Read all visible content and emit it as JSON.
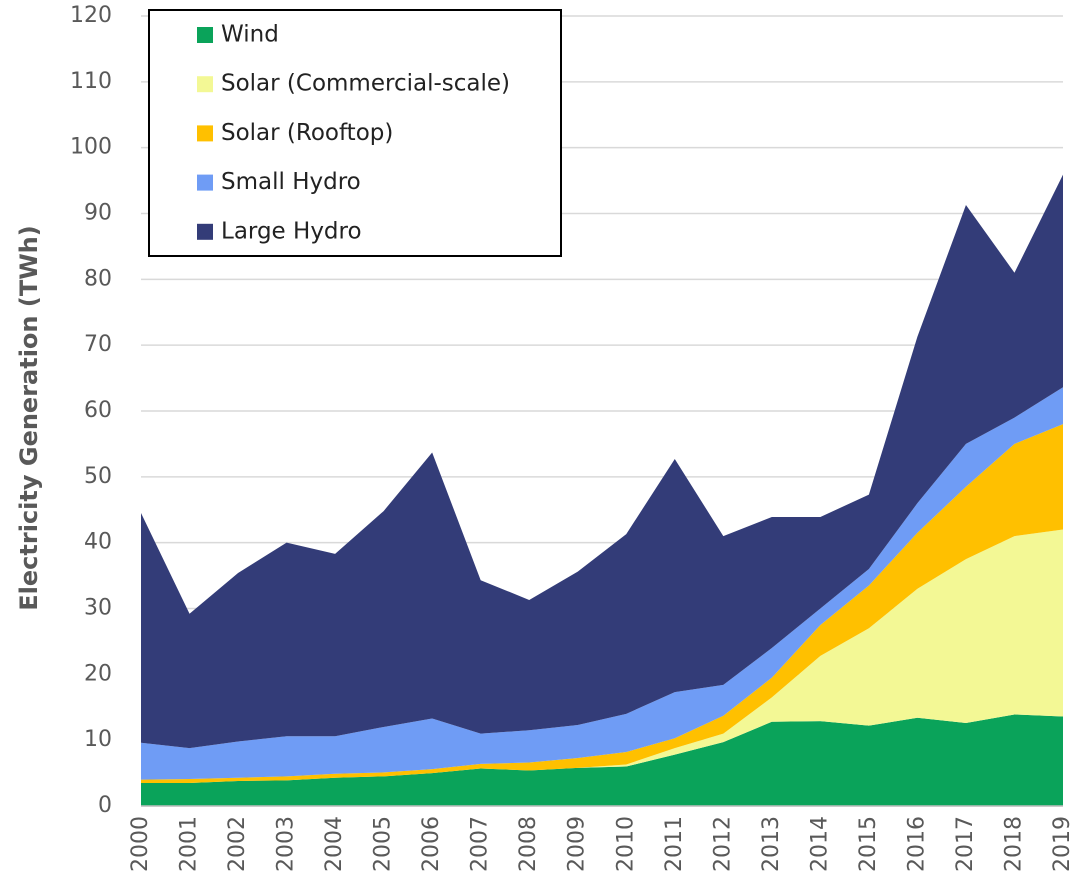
{
  "chart_data": {
    "type": "stacked_area",
    "y_label": "Electricity Generation (TWh)",
    "categories": [
      "2000",
      "2001",
      "2002",
      "2003",
      "2004",
      "2005",
      "2006",
      "2007",
      "2008",
      "2009",
      "2010",
      "2011",
      "2012",
      "2013",
      "2014",
      "2015",
      "2016",
      "2017",
      "2018",
      "2019"
    ],
    "series": [
      {
        "name": "Wind",
        "color": "#0aa35a",
        "values": [
          3.5,
          3.5,
          3.8,
          3.9,
          4.3,
          4.5,
          5.0,
          5.7,
          5.4,
          5.8,
          6.0,
          7.8,
          9.7,
          12.8,
          12.9,
          12.2,
          13.4,
          12.6,
          13.9,
          13.6
        ]
      },
      {
        "name": "Solar (Commercial-scale)",
        "color": "#f3f895",
        "values": [
          0,
          0,
          0,
          0,
          0,
          0,
          0,
          0,
          0,
          0,
          0.3,
          1.0,
          1.3,
          3.7,
          9.9,
          14.8,
          19.6,
          24.9,
          27.1,
          28.4
        ]
      },
      {
        "name": "Solar (Rooftop)",
        "color": "#ffc000",
        "values": [
          0.5,
          0.6,
          0.5,
          0.6,
          0.6,
          0.6,
          0.6,
          0.7,
          1.2,
          1.5,
          1.9,
          1.5,
          2.7,
          3.0,
          4.7,
          6.5,
          8.5,
          11.0,
          14.0,
          16.0
        ]
      },
      {
        "name": "Small Hydro",
        "color": "#6f9cf5",
        "values": [
          5.6,
          4.7,
          5.5,
          6.1,
          5.7,
          6.9,
          7.7,
          4.6,
          4.9,
          5.0,
          5.8,
          7.0,
          4.7,
          4.5,
          2.5,
          2.5,
          4.5,
          6.5,
          4.0,
          5.6
        ]
      },
      {
        "name": "Large Hydro",
        "color": "#333c78",
        "values": [
          34.9,
          20.4,
          25.6,
          29.4,
          27.7,
          32.8,
          40.4,
          23.3,
          19.8,
          23.3,
          27.3,
          35.4,
          22.6,
          19.9,
          13.9,
          11.3,
          25.3,
          36.3,
          22.0,
          32.3
        ]
      }
    ],
    "ylim": [
      0,
      120
    ],
    "yticks": [
      0,
      10,
      20,
      30,
      40,
      50,
      60,
      70,
      80,
      90,
      100,
      110,
      120
    ],
    "grid": true
  }
}
